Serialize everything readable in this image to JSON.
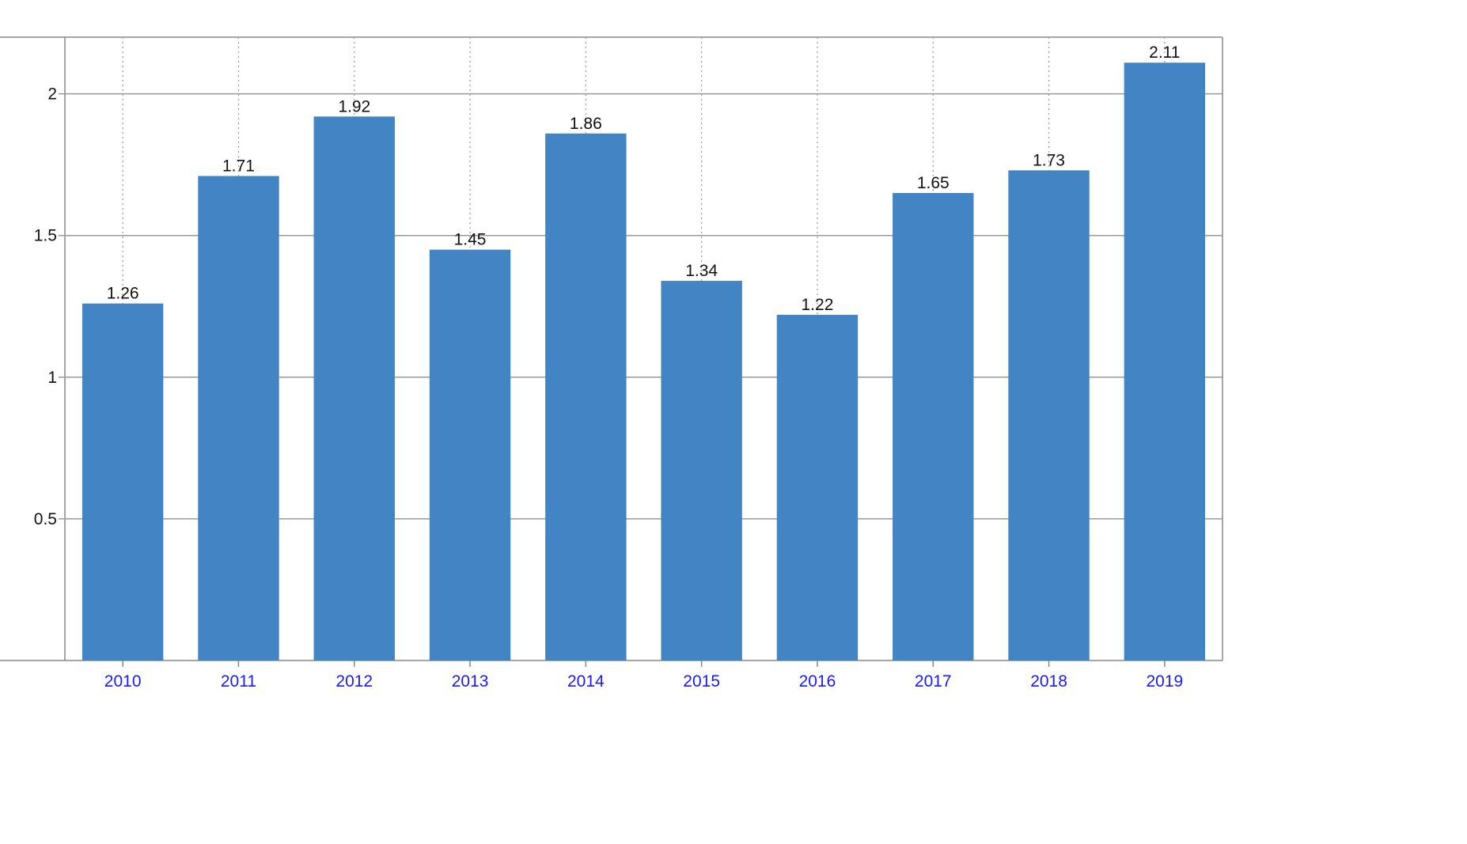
{
  "chart_data": {
    "type": "bar",
    "categories": [
      "2010",
      "2011",
      "2012",
      "2013",
      "2014",
      "2015",
      "2016",
      "2017",
      "2018",
      "2019"
    ],
    "values": [
      1.26,
      1.71,
      1.92,
      1.45,
      1.86,
      1.34,
      1.22,
      1.65,
      1.73,
      2.11
    ],
    "value_labels": [
      "1.26",
      "1.71",
      "1.92",
      "1.45",
      "1.86",
      "1.34",
      "1.22",
      "1.65",
      "1.73",
      "2.11"
    ],
    "y_ticks": [
      0.5,
      1,
      1.5,
      2
    ],
    "y_tick_labels": [
      "0.5",
      "1",
      "1.5",
      "2"
    ],
    "ylim": [
      0,
      2.2
    ],
    "grid": true,
    "title": "",
    "xlabel": "",
    "ylabel": "",
    "colors": {
      "bar": "#4384c4",
      "x_tick_label": "#1a1aff",
      "grid": "#999999",
      "axis": "#888888"
    }
  }
}
